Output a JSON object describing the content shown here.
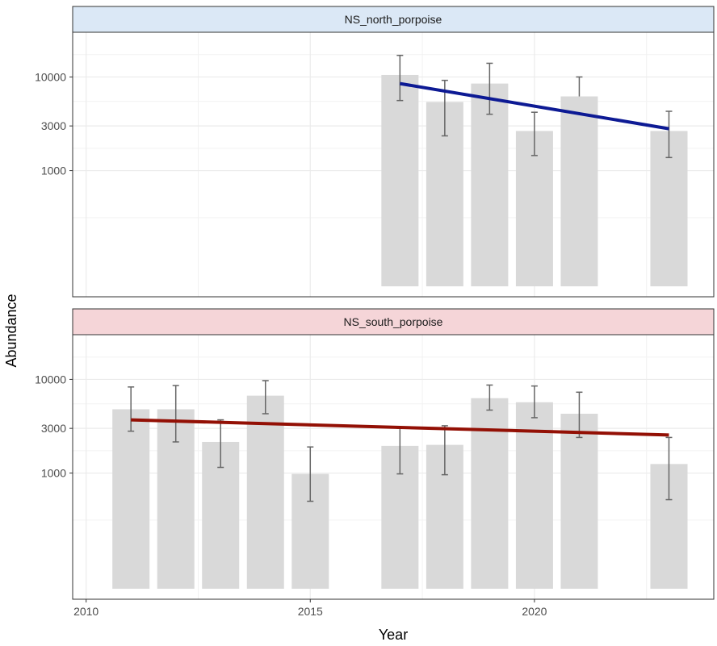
{
  "chart_data": {
    "type": "bar",
    "xlabel": "Year",
    "ylabel": "Abundance",
    "x_ticks": [
      2010,
      2015,
      2020
    ],
    "y_ticks": [
      1000,
      3000,
      10000
    ],
    "y_scale": "log",
    "xlim": [
      2009.7,
      2024.0
    ],
    "ylim": [
      45,
      30000
    ],
    "grid": true,
    "legend": "none",
    "bar_color": "#d9d9d9",
    "errorbar_color": "#666666",
    "panels": [
      {
        "title": "NS_north_porpoise",
        "strip_color": "#dbe8f6",
        "trend_color": "#0d1a94",
        "years": [
          2017,
          2018,
          2019,
          2020,
          2021,
          2023
        ],
        "values": [
          10500,
          5400,
          8500,
          2650,
          6200,
          2650
        ],
        "lower": [
          5600,
          2350,
          4000,
          1450,
          null,
          1380
        ],
        "upper": [
          17000,
          9200,
          14000,
          4200,
          10000,
          4300
        ],
        "trend": {
          "start": [
            2017,
            8500
          ],
          "end": [
            2023,
            2800
          ]
        }
      },
      {
        "title": "NS_south_porpoise",
        "strip_color": "#f5d5d8",
        "trend_color": "#931005",
        "years": [
          2011,
          2012,
          2013,
          2014,
          2015,
          2017,
          2018,
          2019,
          2020,
          2021,
          2023
        ],
        "values": [
          4800,
          4800,
          2150,
          6700,
          980,
          1950,
          2000,
          6300,
          5700,
          4300,
          1250
        ],
        "lower": [
          2800,
          2150,
          1150,
          4300,
          500,
          980,
          960,
          4700,
          3900,
          2400,
          520
        ],
        "upper": [
          8300,
          8600,
          3700,
          9700,
          1900,
          3000,
          3200,
          8700,
          8500,
          7300,
          2400
        ],
        "trend": {
          "start": [
            2011,
            3700
          ],
          "end": [
            2023,
            2550
          ]
        }
      }
    ]
  }
}
